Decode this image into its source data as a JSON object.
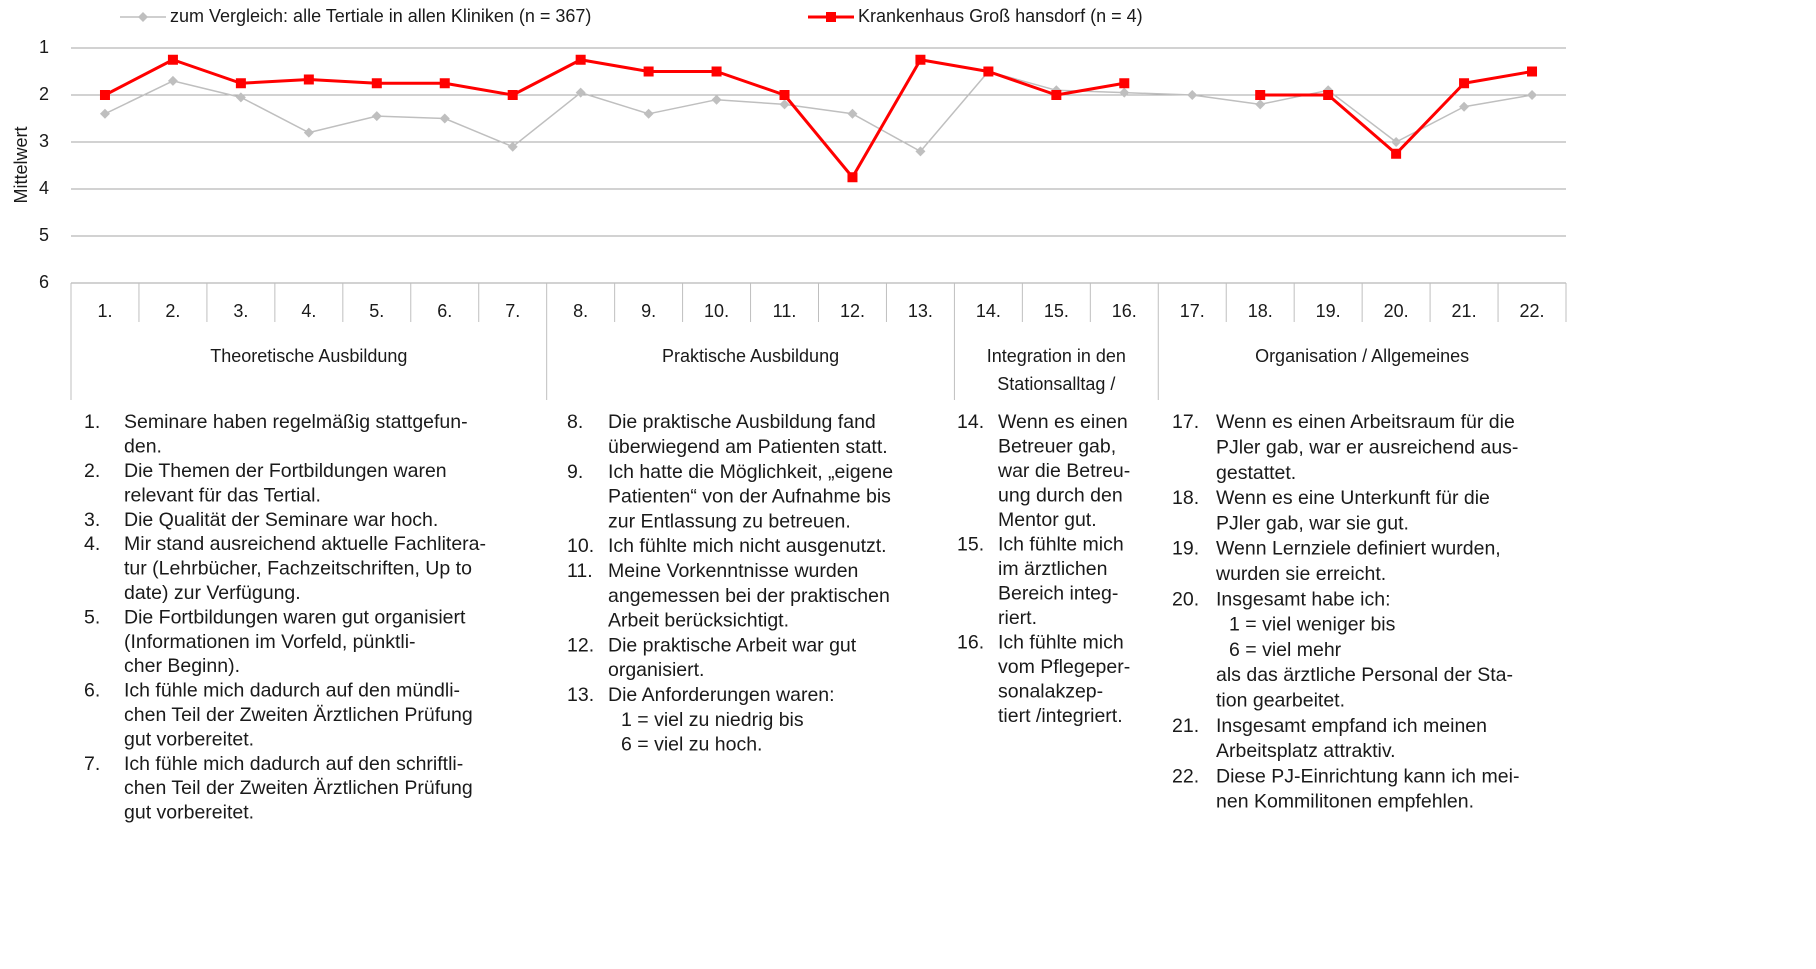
{
  "chart_data": {
    "type": "line",
    "y_label": "Mittelwert",
    "categories": [
      "1.",
      "2.",
      "3.",
      "4.",
      "5.",
      "6.",
      "7.",
      "8.",
      "9.",
      "10.",
      "11.",
      "12.",
      "13.",
      "14.",
      "15.",
      "16.",
      "17.",
      "18.",
      "19.",
      "20.",
      "21.",
      "22."
    ],
    "series": [
      {
        "name": "zum Vergleich: alle Tertiale in allen Kliniken (n = 367)",
        "color": "#bfbfbf",
        "marker": "diamond",
        "values": [
          2.4,
          1.7,
          2.05,
          2.8,
          2.45,
          2.5,
          3.1,
          1.95,
          2.4,
          2.1,
          2.2,
          2.4,
          3.2,
          1.5,
          1.9,
          1.95,
          2.0,
          2.2,
          1.9,
          3.0,
          2.25,
          2.0
        ]
      },
      {
        "name": "Krankenhaus Groß hansdorf (n = 4)",
        "color": "#ff0000",
        "marker": "square",
        "values": [
          2.0,
          1.25,
          1.75,
          1.67,
          1.75,
          1.75,
          2.0,
          1.25,
          1.5,
          1.5,
          2.0,
          3.75,
          1.25,
          1.5,
          2.0,
          1.75,
          null,
          2.0,
          2.0,
          3.25,
          1.75,
          1.5
        ]
      }
    ],
    "ylim": [
      1,
      6
    ],
    "y_inverted": true,
    "yticks": [
      1,
      2,
      3,
      4,
      5,
      6
    ],
    "grid": true,
    "legend": "top",
    "groups": [
      {
        "label": [
          "Theoretische Ausbildung"
        ],
        "span": [
          0,
          6
        ]
      },
      {
        "label": [
          "Praktische Ausbildung"
        ],
        "span": [
          7,
          12
        ]
      },
      {
        "label": [
          "Integration in den",
          "Stationsalltag /"
        ],
        "span": [
          13,
          15
        ]
      },
      {
        "label": [
          "Organisation / Allgemeines"
        ],
        "span": [
          16,
          21
        ]
      }
    ]
  },
  "notes": [
    [
      {
        "number": "1.",
        "lines": [
          "Seminare haben regelmäßig stattgefun-",
          "den."
        ]
      },
      {
        "number": "2.",
        "lines": [
          "Die Themen der Fortbildungen waren",
          "relevant für das Tertial."
        ]
      },
      {
        "number": "3.",
        "lines": [
          "Die Qualität der Seminare war hoch."
        ]
      },
      {
        "number": "4.",
        "lines": [
          "Mir stand ausreichend aktuelle Fachlitera-",
          "tur (Lehrbücher, Fachzeitschriften, Up to",
          "date) zur Verfügung."
        ]
      },
      {
        "number": "5.",
        "lines": [
          "Die Fortbildungen waren gut organisiert",
          "(Informationen im Vorfeld, pünktli-",
          "cher Beginn)."
        ]
      },
      {
        "number": "6.",
        "lines": [
          "Ich fühle mich dadurch auf den mündli-",
          "chen Teil der Zweiten Ärztlichen Prüfung",
          "gut vorbereitet."
        ]
      },
      {
        "number": "7.",
        "lines": [
          "Ich fühle mich dadurch auf den schriftli-",
          "chen Teil der Zweiten Ärztlichen Prüfung",
          "gut vorbereitet."
        ]
      }
    ],
    [
      {
        "number": "8.",
        "lines": [
          "Die praktische Ausbildung fand",
          "überwiegend am Patienten statt."
        ]
      },
      {
        "number": "9.",
        "lines": [
          "Ich hatte die Möglichkeit, „eigene",
          "Patienten“ von der Aufnahme bis",
          "zur Entlassung zu betreuen."
        ]
      },
      {
        "number": "10.",
        "lines": [
          "Ich fühlte mich nicht ausgenutzt."
        ]
      },
      {
        "number": "11.",
        "lines": [
          "Meine Vorkenntnisse wurden",
          "angemessen bei der praktischen",
          "Arbeit berücksichtigt."
        ]
      },
      {
        "number": "12.",
        "lines": [
          "Die praktische Arbeit war gut",
          "organisiert."
        ]
      },
      {
        "number": "13.",
        "lines": [
          "Die Anforderungen waren:"
        ],
        "scale": [
          "1 = viel zu niedrig bis",
          "6 = viel zu hoch."
        ]
      }
    ],
    [
      {
        "number": "14.",
        "lines": [
          "Wenn es einen",
          "Betreuer gab,",
          "war die Betreu-",
          "ung durch den",
          "Mentor gut."
        ]
      },
      {
        "number": "15.",
        "lines": [
          "Ich fühlte mich",
          "im ärztlichen",
          "Bereich integ-",
          "riert."
        ]
      },
      {
        "number": "16.",
        "lines": [
          "Ich fühlte mich",
          "vom Pflegeper-",
          "sonalakzep-",
          "tiert /integriert."
        ]
      }
    ],
    [
      {
        "number": "17.",
        "lines": [
          "Wenn es einen Arbeitsraum für die",
          "PJler gab, war er ausreichend aus-",
          "gestattet."
        ]
      },
      {
        "number": "18.",
        "lines": [
          "Wenn es eine Unterkunft für die",
          "PJler gab, war sie gut."
        ]
      },
      {
        "number": "19.",
        "lines": [
          "Wenn Lernziele definiert wurden,",
          "wurden sie erreicht."
        ]
      },
      {
        "number": "20.",
        "lines": [
          "Insgesamt habe ich:"
        ],
        "scale": [
          "1 = viel weniger bis",
          "6 = viel mehr"
        ],
        "after": [
          "als das ärztliche Personal der Sta-",
          "tion gearbeitet."
        ]
      },
      {
        "number": "21.",
        "lines": [
          "Insgesamt empfand ich meinen",
          "Arbeitsplatz attraktiv."
        ]
      },
      {
        "number": "22.",
        "lines": [
          "Diese PJ-Einrichtung kann ich mei-",
          "nen Kommilitonen empfehlen."
        ]
      }
    ]
  ]
}
